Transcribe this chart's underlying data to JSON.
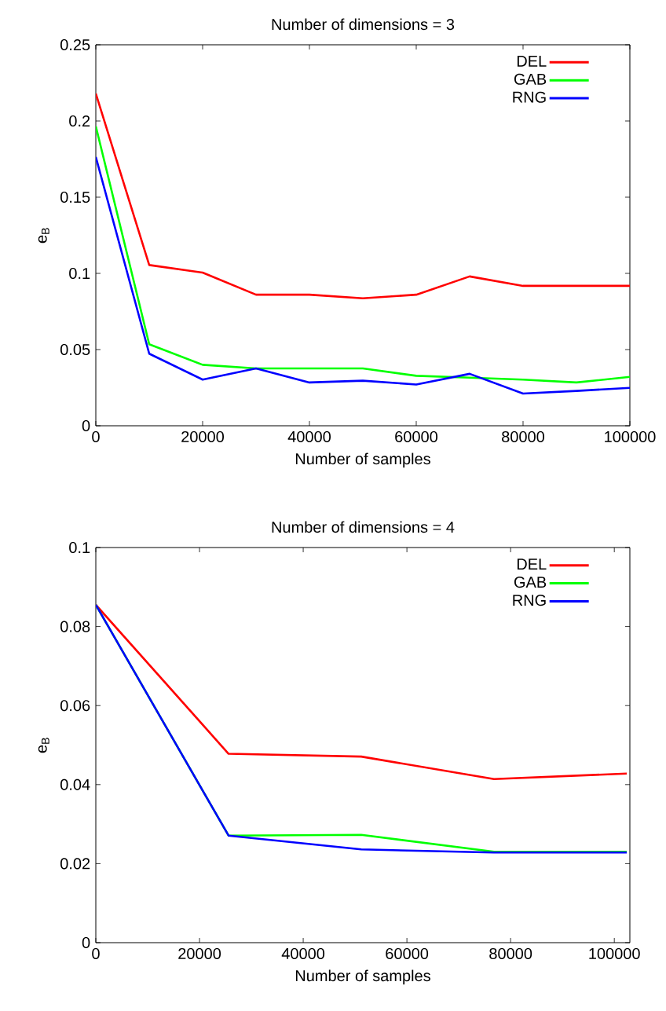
{
  "chart_data": [
    {
      "type": "line",
      "title": "Number of dimensions = 3",
      "xlabel": "Number of samples",
      "ylabel": "e$_{B}$",
      "x": [
        0,
        10000,
        20000,
        30000,
        40000,
        50000,
        60000,
        70000,
        80000,
        90000,
        100000
      ],
      "series": [
        {
          "name": "DEL",
          "color": "#ff0000",
          "values": [
            0.218,
            0.1055,
            0.1005,
            0.086,
            0.086,
            0.0836,
            0.086,
            0.098,
            0.0918,
            0.0918,
            0.0918
          ]
        },
        {
          "name": "GAB",
          "color": "#00ff00",
          "values": [
            0.1965,
            0.0535,
            0.04,
            0.0376,
            0.0376,
            0.0376,
            0.0328,
            0.0316,
            0.0303,
            0.0284,
            0.0321
          ]
        },
        {
          "name": "RNG",
          "color": "#0000ff",
          "values": [
            0.1764,
            0.0473,
            0.0303,
            0.0376,
            0.0284,
            0.0296,
            0.0271,
            0.0341,
            0.0211,
            0.0229,
            0.0249
          ]
        }
      ],
      "xlim": [
        0,
        100000
      ],
      "xticks": [
        0,
        20000,
        40000,
        60000,
        80000,
        100000
      ],
      "ylim": [
        0,
        0.25
      ],
      "yticks": [
        0,
        0.05,
        0.1,
        0.15,
        0.2,
        0.25
      ],
      "legend": "top right"
    },
    {
      "type": "line",
      "title": "Number of dimensions = 4",
      "xlabel": "Number of samples",
      "ylabel": "e$_{B}$",
      "x": [
        0,
        25600,
        51200,
        76800,
        102400
      ],
      "series": [
        {
          "name": "DEL",
          "color": "#ff0000",
          "values": [
            0.0855,
            0.0478,
            0.0471,
            0.0414,
            0.0428
          ]
        },
        {
          "name": "GAB",
          "color": "#00ff00",
          "values": [
            0.0855,
            0.0271,
            0.0273,
            0.023,
            0.023
          ]
        },
        {
          "name": "RNG",
          "color": "#0000ff",
          "values": [
            0.0855,
            0.0271,
            0.0236,
            0.0228,
            0.0228
          ]
        }
      ],
      "xlim": [
        0,
        103000
      ],
      "xticks": [
        0,
        20000,
        40000,
        60000,
        80000,
        100000
      ],
      "ylim": [
        0,
        0.1
      ],
      "yticks": [
        0,
        0.02,
        0.04,
        0.06,
        0.08,
        0.1
      ],
      "legend": "top right"
    }
  ]
}
